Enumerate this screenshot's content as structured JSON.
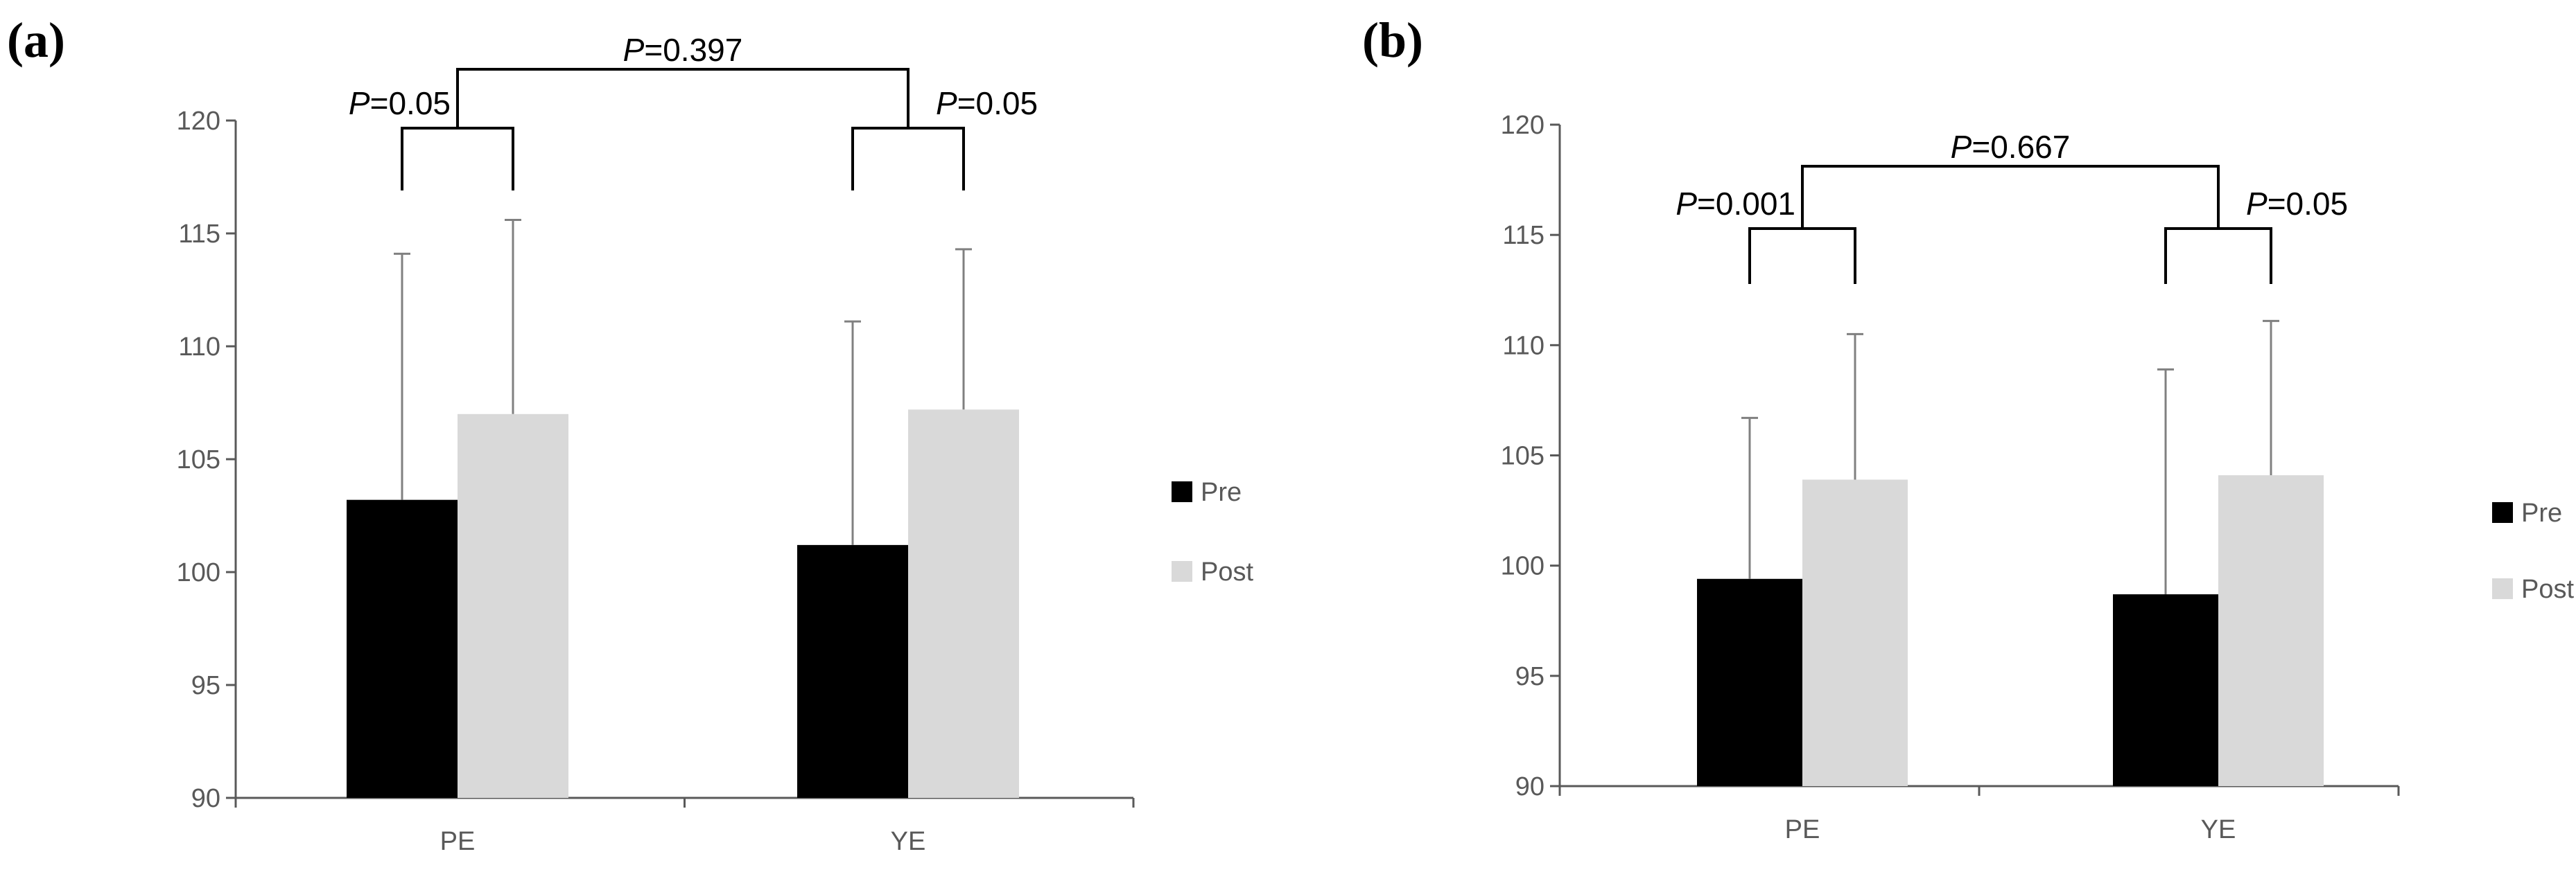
{
  "colors": {
    "pre": "#000000",
    "post": "#d9d9d9",
    "axis": "#595959",
    "error": "#808080",
    "bracket": "#000000"
  },
  "chart_data": [
    {
      "type": "bar",
      "panel_label": "(a)",
      "categories": [
        "PE",
        "YE"
      ],
      "ylim": [
        90,
        120
      ],
      "yticks": [
        "90",
        "95",
        "100",
        "105",
        "110",
        "115",
        "120"
      ],
      "series": [
        {
          "name": "Pre",
          "values": [
            103.2,
            101.2
          ],
          "errors": [
            10.9,
            9.9
          ]
        },
        {
          "name": "Post",
          "values": [
            107.0,
            107.2
          ],
          "errors": [
            8.6,
            7.1
          ]
        }
      ],
      "comparisons": [
        {
          "p_label": "P",
          "p_value": "=0.05",
          "between": "PE Pre vs PE Post"
        },
        {
          "p_label": "P",
          "p_value": "=0.05",
          "between": "YE Pre vs YE Post"
        },
        {
          "p_label": "P",
          "p_value": "=0.397",
          "between": "PE vs YE"
        }
      ],
      "legend": [
        "Pre",
        "Post"
      ]
    },
    {
      "type": "bar",
      "panel_label": "(b)",
      "categories": [
        "PE",
        "YE"
      ],
      "ylim": [
        90,
        120
      ],
      "yticks": [
        "90",
        "95",
        "100",
        "105",
        "110",
        "115",
        "120"
      ],
      "series": [
        {
          "name": "Pre",
          "values": [
            99.4,
            98.7
          ],
          "errors": [
            7.3,
            10.2
          ]
        },
        {
          "name": "Post",
          "values": [
            103.9,
            104.1
          ],
          "errors": [
            6.6,
            7.0
          ]
        }
      ],
      "comparisons": [
        {
          "p_label": "P",
          "p_value": "=0.001",
          "between": "PE Pre vs PE Post"
        },
        {
          "p_label": "P",
          "p_value": "=0.05",
          "between": "YE Pre vs YE Post"
        },
        {
          "p_label": "P",
          "p_value": "=0.667",
          "between": "PE vs YE"
        }
      ],
      "legend": [
        "Pre",
        "Post"
      ]
    }
  ]
}
